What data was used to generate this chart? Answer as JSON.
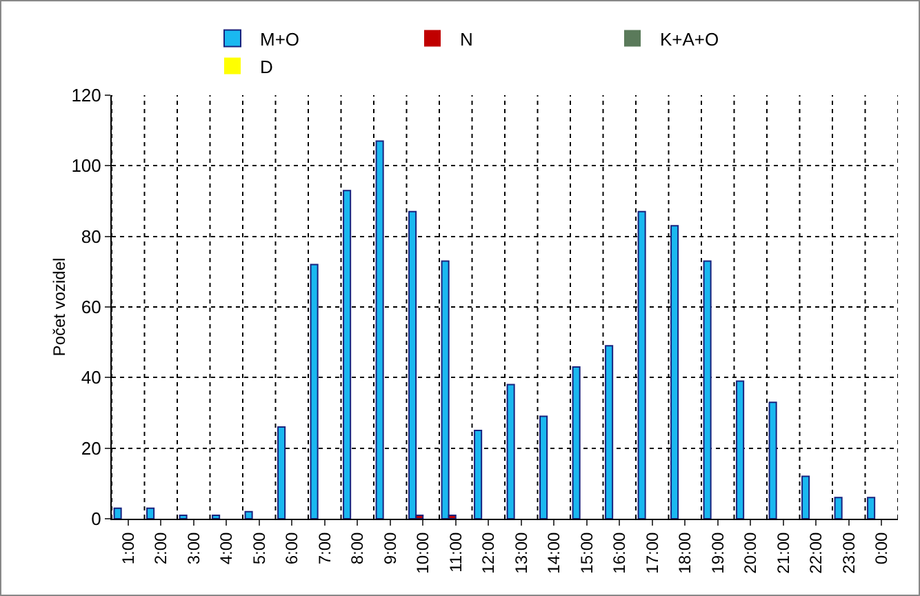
{
  "chart_data": {
    "type": "bar",
    "ylabel": "Počet vozidel",
    "categories": [
      "1:00",
      "2:00",
      "3:00",
      "4:00",
      "5:00",
      "6:00",
      "7:00",
      "8:00",
      "9:00",
      "10:00",
      "11:00",
      "12:00",
      "13:00",
      "14:00",
      "15:00",
      "16:00",
      "17:00",
      "18:00",
      "19:00",
      "20:00",
      "21:00",
      "22:00",
      "23:00",
      "0:00"
    ],
    "series": [
      {
        "name": "M+O",
        "color": "#1ab8f0",
        "values": [
          3,
          3,
          1,
          1,
          2,
          26,
          72,
          93,
          107,
          87,
          73,
          25,
          38,
          29,
          43,
          49,
          87,
          83,
          73,
          39,
          33,
          12,
          6,
          6
        ]
      },
      {
        "name": "N",
        "color": "#c00000",
        "values": [
          0,
          0,
          0,
          0,
          0,
          0,
          0,
          0,
          0,
          1,
          1,
          0,
          0,
          0,
          0,
          0,
          0,
          0,
          0,
          0,
          0,
          0,
          0,
          0
        ]
      },
      {
        "name": "K+A+O",
        "color": "#5a7a5a",
        "values": [
          0,
          0,
          0,
          0,
          0,
          0,
          0,
          0,
          0,
          0,
          0,
          0,
          0,
          0,
          0,
          0,
          0,
          0,
          0,
          0,
          0,
          0,
          0,
          0
        ]
      },
      {
        "name": "D",
        "color": "#ffff00",
        "values": [
          0,
          0,
          0,
          0,
          0,
          0,
          0,
          0,
          0,
          0,
          0,
          0,
          0,
          0,
          0,
          0,
          0,
          0,
          0,
          0,
          0,
          0,
          0,
          0
        ]
      }
    ],
    "ylim": [
      0,
      120
    ],
    "yticks": [
      0,
      20,
      40,
      60,
      80,
      100,
      120
    ],
    "grid": true,
    "legend": "top"
  }
}
